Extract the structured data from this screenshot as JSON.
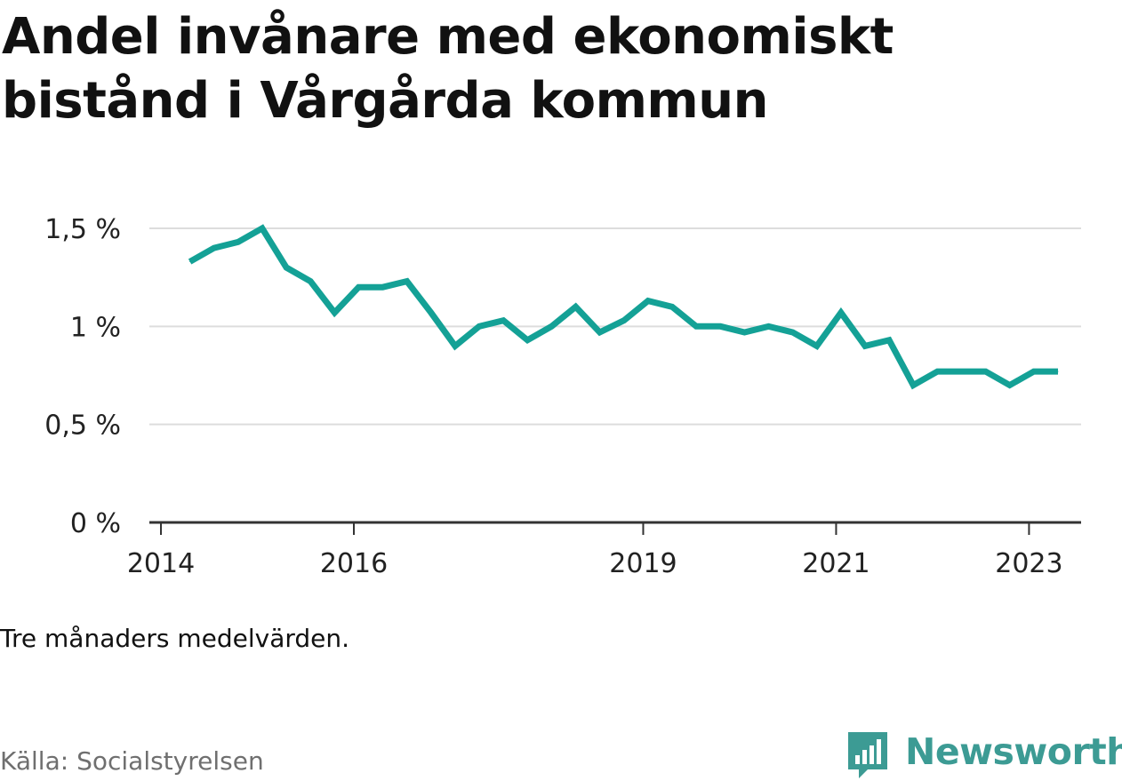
{
  "title": "Andel invånare med ekonomiskt bistånd i Vårgårda kommun",
  "note": "Tre månaders medelvärden.",
  "source": "Källa: Socialstyrelsen",
  "brand": {
    "name": "Newsworthy",
    "color": "#3c9b94"
  },
  "colors": {
    "line": "#14a196",
    "grid": "#dddddd",
    "axis": "#333333"
  },
  "chart_data": {
    "type": "line",
    "title": "Andel invånare med ekonomiskt bistånd i Vårgårda kommun",
    "xlabel": "",
    "ylabel": "",
    "ylim": [
      0,
      1.5
    ],
    "y_ticks": [
      {
        "value": 0,
        "label": "0 %"
      },
      {
        "value": 0.5,
        "label": "0,5 %"
      },
      {
        "value": 1,
        "label": "1 %"
      },
      {
        "value": 1.5,
        "label": "1,5 %"
      }
    ],
    "x_ticks": [
      {
        "value": 2014.0,
        "label": "2014"
      },
      {
        "value": 2016.0,
        "label": "2016"
      },
      {
        "value": 2019.0,
        "label": "2019"
      },
      {
        "value": 2021.0,
        "label": "2021"
      },
      {
        "value": 2023.0,
        "label": "2023"
      }
    ],
    "xlim": [
      2013.88,
      2023.54
    ],
    "series": [
      {
        "name": "Andel invånare med ekonomiskt bistånd",
        "x": [
          2014.3,
          2014.55,
          2014.8,
          2015.05,
          2015.3,
          2015.55,
          2015.8,
          2016.05,
          2016.3,
          2016.55,
          2016.8,
          2017.05,
          2017.3,
          2017.55,
          2017.8,
          2018.05,
          2018.3,
          2018.55,
          2018.8,
          2019.05,
          2019.3,
          2019.55,
          2019.8,
          2020.05,
          2020.3,
          2020.55,
          2020.8,
          2021.05,
          2021.3,
          2021.55,
          2021.8,
          2022.05,
          2022.3,
          2022.55,
          2022.8,
          2023.05,
          2023.3
        ],
        "values": [
          1.33,
          1.4,
          1.43,
          1.5,
          1.3,
          1.23,
          1.07,
          1.2,
          1.2,
          1.23,
          1.07,
          0.9,
          1.0,
          1.03,
          0.93,
          1.0,
          1.1,
          0.97,
          1.03,
          1.13,
          1.1,
          1.0,
          1.0,
          0.97,
          1.0,
          0.97,
          0.9,
          1.07,
          0.9,
          0.93,
          0.7,
          0.77,
          0.77,
          0.77,
          0.7,
          0.77,
          0.77
        ]
      }
    ]
  }
}
